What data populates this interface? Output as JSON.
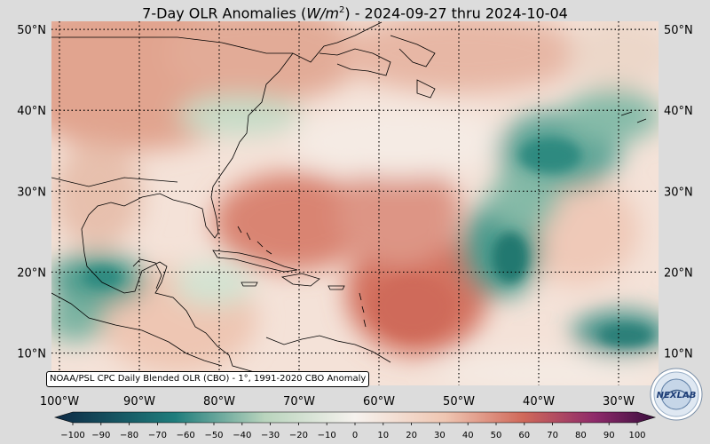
{
  "title": {
    "prefix": "7-Day OLR Anomalies (",
    "unit_base": "W/m",
    "unit_exp": "2",
    "suffix": ") - 2024-09-27 thru 2024-10-04"
  },
  "map": {
    "lat_labels": [
      "50°N",
      "40°N",
      "30°N",
      "20°N",
      "10°N"
    ],
    "lat_values": [
      50,
      40,
      30,
      20,
      10
    ],
    "lon_labels": [
      "100°W",
      "90°W",
      "80°W",
      "70°W",
      "60°W",
      "50°W",
      "40°W",
      "30°W"
    ],
    "lon_values": [
      -100,
      -90,
      -80,
      -70,
      -60,
      -50,
      -40,
      -30
    ],
    "lon_range": [
      -101,
      -25
    ],
    "lat_range": [
      6,
      51
    ]
  },
  "colorbar": {
    "ticks": [
      "−100",
      "−90",
      "−80",
      "−70",
      "−60",
      "−50",
      "−40",
      "−30",
      "−20",
      "−10",
      "0",
      "10",
      "20",
      "30",
      "40",
      "50",
      "60",
      "70",
      "80",
      "90",
      "100"
    ],
    "range": [
      -100,
      100
    ],
    "colors": {
      "negative_strong": "#0d2a45",
      "negative_mid": "#1f7d7c",
      "negative_light": "#b9d4bd",
      "neutral": "#f6f2ee",
      "positive_light": "#efc6b2",
      "positive_mid": "#d0695a",
      "positive_strong": "#8e2a6a",
      "positive_extreme": "#3b0f3f"
    }
  },
  "credit": "NOAA/PSL CPC Daily Blended OLR (CBO) - 1°, 1991-2020 CBO Anomaly",
  "logo": {
    "text": "NEXLAB"
  }
}
